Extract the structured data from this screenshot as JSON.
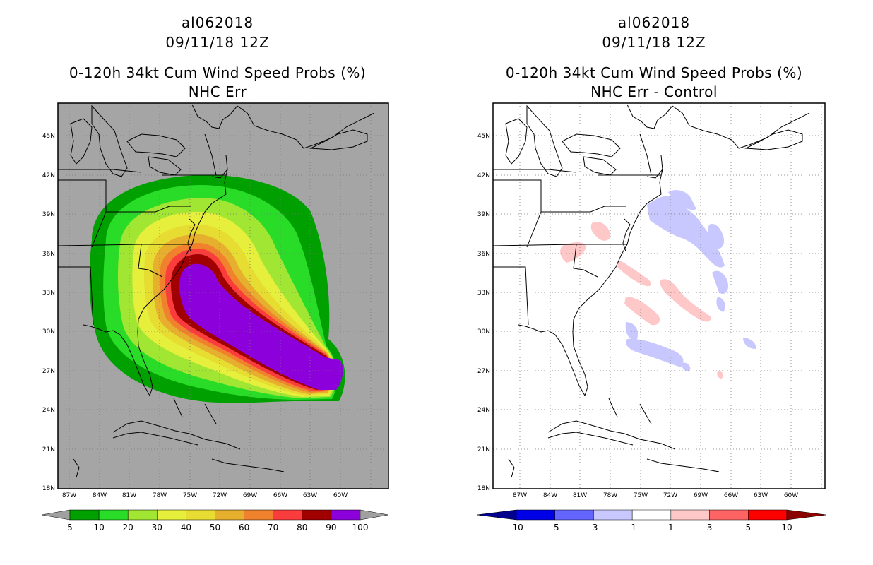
{
  "left_panel": {
    "storm_id": "al062018",
    "datetime": "09/11/18 12Z",
    "title": "0-120h 34kt Cum Wind Speed Probs (%)",
    "subtitle": "NHC Err",
    "lat_labels": [
      "45N",
      "42N",
      "39N",
      "36N",
      "33N",
      "30N",
      "27N",
      "24N",
      "21N",
      "18N"
    ],
    "lon_labels": [
      "87W",
      "84W",
      "81W",
      "78W",
      "75W",
      "72W",
      "69W",
      "66W",
      "63W",
      "60W"
    ],
    "colorbar": {
      "colors": [
        "#00a000",
        "#28dc28",
        "#a0e632",
        "#e6f03c",
        "#e6dc32",
        "#e6af2d",
        "#f0822d",
        "#fa3c3c",
        "#a00000",
        "#8c00dc"
      ],
      "under_color": "#a0a0a0",
      "over_color": "#a0a0a0",
      "labels": [
        "5",
        "10",
        "20",
        "30",
        "40",
        "50",
        "60",
        "70",
        "80",
        "90",
        "100"
      ]
    }
  },
  "right_panel": {
    "storm_id": "al062018",
    "datetime": "09/11/18 12Z",
    "title": "0-120h 34kt Cum Wind Speed Probs (%)",
    "subtitle": "NHC Err - Control",
    "lat_labels": [
      "45N",
      "42N",
      "39N",
      "36N",
      "33N",
      "30N",
      "27N",
      "24N",
      "21N",
      "18N"
    ],
    "lon_labels": [
      "87W",
      "84W",
      "81W",
      "78W",
      "75W",
      "72W",
      "69W",
      "66W",
      "63W",
      "60W"
    ],
    "colorbar": {
      "colors": [
        "#0000e6",
        "#6464ff",
        "#c8c8ff",
        "#ffffff",
        "#ffc8c8",
        "#ff6464",
        "#ff0000"
      ],
      "under_color": "#00008c",
      "over_color": "#8c0000",
      "labels": [
        "-10",
        "-5",
        "-3",
        "-1",
        "1",
        "3",
        "5",
        "10"
      ]
    }
  }
}
